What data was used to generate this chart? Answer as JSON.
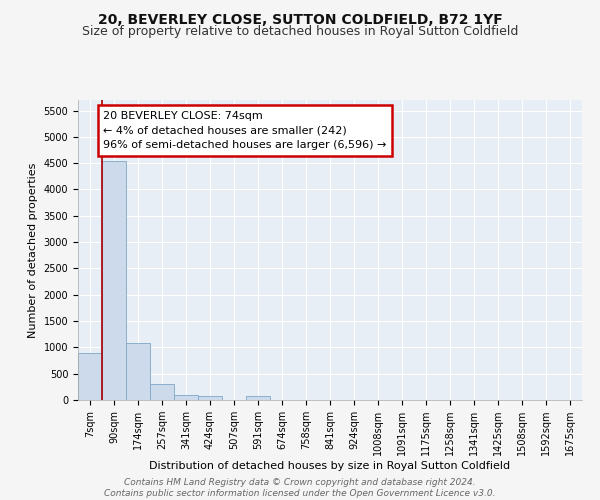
{
  "title": "20, BEVERLEY CLOSE, SUTTON COLDFIELD, B72 1YF",
  "subtitle": "Size of property relative to detached houses in Royal Sutton Coldfield",
  "xlabel": "Distribution of detached houses by size in Royal Sutton Coldfield",
  "ylabel": "Number of detached properties",
  "bar_color": "#cddaeb",
  "bar_edge_color": "#7da8c8",
  "categories": [
    "7sqm",
    "90sqm",
    "174sqm",
    "257sqm",
    "341sqm",
    "424sqm",
    "507sqm",
    "591sqm",
    "674sqm",
    "758sqm",
    "841sqm",
    "924sqm",
    "1008sqm",
    "1091sqm",
    "1175sqm",
    "1258sqm",
    "1341sqm",
    "1425sqm",
    "1508sqm",
    "1592sqm",
    "1675sqm"
  ],
  "values": [
    900,
    4550,
    1075,
    300,
    100,
    75,
    0,
    75,
    0,
    0,
    0,
    0,
    0,
    0,
    0,
    0,
    0,
    0,
    0,
    0,
    0
  ],
  "ylim": [
    0,
    5700
  ],
  "yticks": [
    0,
    500,
    1000,
    1500,
    2000,
    2500,
    3000,
    3500,
    4000,
    4500,
    5000,
    5500
  ],
  "property_label": "20 BEVERLEY CLOSE: 74sqm",
  "annotation_line1": "← 4% of detached houses are smaller (242)",
  "annotation_line2": "96% of semi-detached houses are larger (6,596) →",
  "vline_color": "#aa0000",
  "annotation_box_color": "#cc0000",
  "footer_line1": "Contains HM Land Registry data © Crown copyright and database right 2024.",
  "footer_line2": "Contains public sector information licensed under the Open Government Licence v3.0.",
  "plot_bg_color": "#e8eef5",
  "grid_color": "#ffffff",
  "fig_bg_color": "#f5f5f5",
  "title_fontsize": 10,
  "subtitle_fontsize": 9,
  "axis_label_fontsize": 8,
  "tick_fontsize": 7,
  "annotation_fontsize": 8,
  "footer_fontsize": 6.5
}
